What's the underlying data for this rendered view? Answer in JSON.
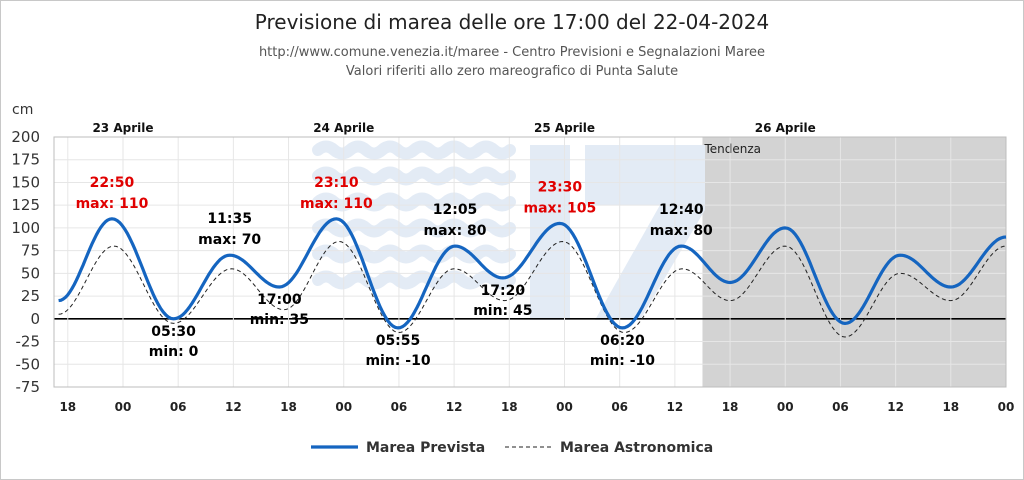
{
  "chart_data": {
    "type": "line",
    "title": "Previsione di marea delle ore 17:00 del 22-04-2024",
    "subtitle_line1": "http://www.comune.venezia.it/maree - Centro Previsioni e Segnalazioni Maree",
    "subtitle_line2": "Valori riferiti allo zero mareografico di Punta Salute",
    "ylabel": "cm",
    "ylim": [
      -75,
      200
    ],
    "yticks": [
      "200",
      "175",
      "150",
      "125",
      "100",
      "75",
      "50",
      "25",
      "0",
      "-25",
      "-50",
      "-75"
    ],
    "ytick_values": [
      200,
      175,
      150,
      125,
      100,
      75,
      50,
      25,
      0,
      -25,
      -50,
      -75
    ],
    "x_range_hours": [
      -7.5,
      48.2
    ],
    "xticks": [
      {
        "label": "18",
        "hour": -6
      },
      {
        "label": "00",
        "hour": 0
      },
      {
        "label": "06",
        "hour": 6
      },
      {
        "label": "12",
        "hour": 12
      },
      {
        "label": "18",
        "hour": 18
      },
      {
        "label": "00",
        "hour": 24
      },
      {
        "label": "06",
        "hour": 30
      },
      {
        "label": "12",
        "hour": 36
      },
      {
        "label": "18",
        "hour": 42
      },
      {
        "label": "00",
        "hour": 48
      },
      {
        "label": "06",
        "hour": 54
      },
      {
        "label": "12",
        "hour": 60
      },
      {
        "label": "18",
        "hour": 66
      },
      {
        "label": "00",
        "hour": 72
      },
      {
        "label": "06",
        "hour": 78
      },
      {
        "label": "12",
        "hour": 84
      },
      {
        "label": "18",
        "hour": 90
      },
      {
        "label": "00",
        "hour": 96
      }
    ],
    "days": [
      {
        "label": "23 Aprile",
        "hour": 0
      },
      {
        "label": "24 Aprile",
        "hour": 24
      },
      {
        "label": "25 Aprile",
        "hour": 48
      },
      {
        "label": "26 Aprile",
        "hour": 72
      }
    ],
    "tendency_label": "Tendenza",
    "tendency_start_hour": 63,
    "grid": true,
    "legend_position": "bottom-center",
    "series": [
      {
        "name": "Marea Prevista",
        "color": "#1565c0",
        "style": "solid",
        "extrema": [
          {
            "hour": -7.0,
            "value": 20
          },
          {
            "hour": -1.2,
            "value": 110
          },
          {
            "hour": 5.5,
            "value": 0
          },
          {
            "hour": 11.6,
            "value": 70
          },
          {
            "hour": 17.0,
            "value": 35
          },
          {
            "hour": 23.2,
            "value": 110
          },
          {
            "hour": 29.9,
            "value": -10
          },
          {
            "hour": 36.1,
            "value": 80
          },
          {
            "hour": 41.3,
            "value": 45
          },
          {
            "hour": 47.5,
            "value": 105
          },
          {
            "hour": 54.3,
            "value": -10
          },
          {
            "hour": 60.7,
            "value": 80
          },
          {
            "hour": 66.0,
            "value": 40
          },
          {
            "hour": 72.0,
            "value": 100
          },
          {
            "hour": 78.5,
            "value": -5
          },
          {
            "hour": 84.5,
            "value": 70
          },
          {
            "hour": 90.0,
            "value": 35
          },
          {
            "hour": 96.0,
            "value": 90
          }
        ]
      },
      {
        "name": "Marea Astronomica",
        "color": "#222222",
        "style": "dashed",
        "extrema": [
          {
            "hour": -7.0,
            "value": 5
          },
          {
            "hour": -1.0,
            "value": 80
          },
          {
            "hour": 5.5,
            "value": -5
          },
          {
            "hour": 11.8,
            "value": 55
          },
          {
            "hour": 17.5,
            "value": 10
          },
          {
            "hour": 23.5,
            "value": 85
          },
          {
            "hour": 30.0,
            "value": -15
          },
          {
            "hour": 36.0,
            "value": 55
          },
          {
            "hour": 41.5,
            "value": 20
          },
          {
            "hour": 47.8,
            "value": 85
          },
          {
            "hour": 54.5,
            "value": -15
          },
          {
            "hour": 60.8,
            "value": 55
          },
          {
            "hour": 66.0,
            "value": 20
          },
          {
            "hour": 72.0,
            "value": 80
          },
          {
            "hour": 78.5,
            "value": -20
          },
          {
            "hour": 84.5,
            "value": 50
          },
          {
            "hour": 90.0,
            "value": 20
          },
          {
            "hour": 96.0,
            "value": 80
          }
        ]
      }
    ],
    "annotations": [
      {
        "time": "22:50",
        "text": "max: 110",
        "hour": -1.2,
        "value": 110,
        "kind": "max",
        "color": "#e00000"
      },
      {
        "time": "05:30",
        "text": "min: 0",
        "hour": 5.5,
        "value": 0,
        "kind": "min",
        "color": "#000000"
      },
      {
        "time": "11:35",
        "text": "max: 70",
        "hour": 11.6,
        "value": 70,
        "kind": "max",
        "color": "#000000"
      },
      {
        "time": "17:00",
        "text": "min: 35",
        "hour": 17.0,
        "value": 35,
        "kind": "min",
        "color": "#000000"
      },
      {
        "time": "23:10",
        "text": "max: 110",
        "hour": 23.2,
        "value": 110,
        "kind": "max",
        "color": "#e00000"
      },
      {
        "time": "05:55",
        "text": "min: -10",
        "hour": 29.9,
        "value": -10,
        "kind": "min",
        "color": "#000000"
      },
      {
        "time": "12:05",
        "text": "max: 80",
        "hour": 36.1,
        "value": 80,
        "kind": "max",
        "color": "#000000"
      },
      {
        "time": "17:20",
        "text": "min: 45",
        "hour": 41.3,
        "value": 45,
        "kind": "min",
        "color": "#000000"
      },
      {
        "time": "23:30",
        "text": "max: 105",
        "hour": 47.5,
        "value": 105,
        "kind": "max",
        "color": "#e00000"
      },
      {
        "time": "06:20",
        "text": "min: -10",
        "hour": 54.3,
        "value": -10,
        "kind": "min",
        "color": "#000000"
      },
      {
        "time": "12:40",
        "text": "max: 80",
        "hour": 60.7,
        "value": 80,
        "kind": "max",
        "color": "#000000"
      }
    ]
  }
}
